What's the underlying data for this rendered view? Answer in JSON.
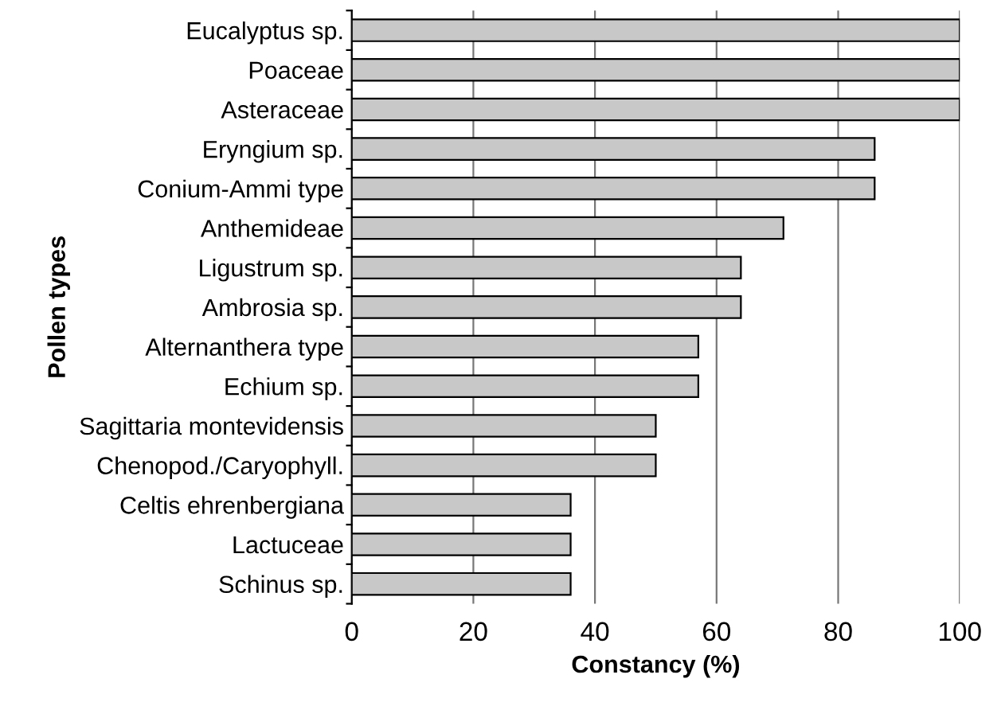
{
  "chart_data": {
    "type": "bar",
    "orientation": "horizontal",
    "xlabel": "Constancy (%)",
    "ylabel": "Pollen types",
    "categories": [
      "Eucalyptus sp.",
      "Poaceae",
      "Asteraceae",
      "Eryngium sp.",
      "Conium-Ammi type",
      "Anthemideae",
      "Ligustrum sp.",
      "Ambrosia sp.",
      "Alternanthera type",
      "Echium sp.",
      "Sagittaria montevidensis",
      "Chenopod./Caryophyll.",
      "Celtis ehrenbergiana",
      "Lactuceae",
      "Schinus sp."
    ],
    "values": [
      100,
      100,
      100,
      86,
      86,
      71,
      64,
      64,
      57,
      57,
      50,
      50,
      36,
      36,
      36
    ],
    "color": "#c8c8c8",
    "xlim": [
      0,
      100
    ],
    "xticks": [
      0,
      20,
      40,
      60,
      80,
      100
    ],
    "grid": "x",
    "legend": false
  }
}
